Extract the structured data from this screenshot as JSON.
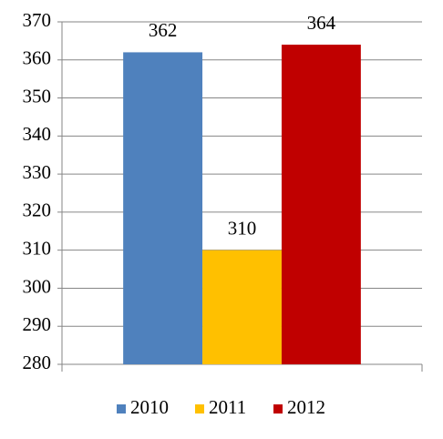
{
  "chart_data": {
    "type": "bar",
    "categories": [
      null
    ],
    "series": [
      {
        "name": "2010",
        "color": "#4f81bd",
        "values": [
          362
        ]
      },
      {
        "name": "2011",
        "color": "#ffc000",
        "values": [
          310
        ]
      },
      {
        "name": "2012",
        "color": "#c00000",
        "values": [
          364
        ]
      }
    ],
    "ylim": [
      280,
      370
    ],
    "yticks": [
      280,
      290,
      300,
      310,
      320,
      330,
      340,
      350,
      360,
      370
    ],
    "grid": true,
    "legend": "bottom"
  }
}
